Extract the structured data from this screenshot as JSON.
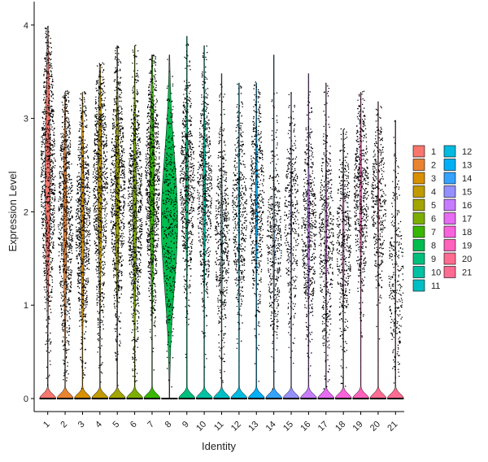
{
  "chart_data": {
    "type": "violin",
    "title": "",
    "xlabel": "Identity",
    "ylabel": "Expression Level",
    "ylim": [
      -0.1,
      4.1
    ],
    "yticks": [
      0,
      1,
      2,
      3,
      4
    ],
    "grid": false,
    "legend_position": "right",
    "categories": [
      "1",
      "2",
      "3",
      "4",
      "5",
      "6",
      "7",
      "8",
      "9",
      "10",
      "11",
      "12",
      "13",
      "14",
      "15",
      "16",
      "17",
      "18",
      "19",
      "20",
      "21"
    ],
    "colors": [
      "#F8766D",
      "#EA8331",
      "#D89000",
      "#C09B00",
      "#A3A500",
      "#7CAE00",
      "#39B600",
      "#00BB4E",
      "#00BF7D",
      "#00C1A3",
      "#00BFC4",
      "#00BAE0",
      "#00B0F6",
      "#35A2FF",
      "#9590FF",
      "#C77CFF",
      "#E76BF3",
      "#FA62DB",
      "#FF62BC",
      "#FF6C91",
      "#FF6C91"
    ],
    "series": [
      {
        "name": "1",
        "zero_peak": 0.35,
        "center": 2.4,
        "spread": 0.85,
        "max": 4.0,
        "nonzero_frac": 0.9
      },
      {
        "name": "2",
        "zero_peak": 0.5,
        "center": 1.9,
        "spread": 0.8,
        "max": 3.3,
        "nonzero_frac": 0.8
      },
      {
        "name": "3",
        "zero_peak": 0.45,
        "center": 1.9,
        "spread": 0.7,
        "max": 3.3,
        "nonzero_frac": 0.75
      },
      {
        "name": "4",
        "zero_peak": 0.45,
        "center": 2.3,
        "spread": 0.8,
        "max": 3.6,
        "nonzero_frac": 0.85
      },
      {
        "name": "5",
        "zero_peak": 0.45,
        "center": 2.2,
        "spread": 0.75,
        "max": 3.8,
        "nonzero_frac": 0.8
      },
      {
        "name": "6",
        "zero_peak": 0.45,
        "center": 2.0,
        "spread": 0.75,
        "max": 3.8,
        "nonzero_frac": 0.8
      },
      {
        "name": "7",
        "zero_peak": 0.35,
        "center": 2.3,
        "spread": 0.75,
        "max": 3.7,
        "nonzero_frac": 0.85
      },
      {
        "name": "8",
        "zero_peak": 0.0,
        "center": 1.9,
        "spread": 0.7,
        "max": 3.7,
        "nonzero_frac": 0.3
      },
      {
        "name": "9",
        "zero_peak": 0.45,
        "center": 2.3,
        "spread": 0.6,
        "max": 3.9,
        "nonzero_frac": 0.6
      },
      {
        "name": "10",
        "zero_peak": 0.45,
        "center": 2.2,
        "spread": 0.65,
        "max": 3.8,
        "nonzero_frac": 0.55
      },
      {
        "name": "11",
        "zero_peak": 0.6,
        "center": 1.7,
        "spread": 0.6,
        "max": 3.5,
        "nonzero_frac": 0.45
      },
      {
        "name": "12",
        "zero_peak": 0.6,
        "center": 2.0,
        "spread": 0.6,
        "max": 3.4,
        "nonzero_frac": 0.4
      },
      {
        "name": "13",
        "zero_peak": 0.55,
        "center": 2.1,
        "spread": 0.65,
        "max": 3.4,
        "nonzero_frac": 0.5
      },
      {
        "name": "14",
        "zero_peak": 0.55,
        "center": 1.7,
        "spread": 0.6,
        "max": 3.7,
        "nonzero_frac": 0.35
      },
      {
        "name": "15",
        "zero_peak": 0.55,
        "center": 1.9,
        "spread": 0.6,
        "max": 3.3,
        "nonzero_frac": 0.3
      },
      {
        "name": "16",
        "zero_peak": 0.6,
        "center": 1.8,
        "spread": 0.6,
        "max": 3.5,
        "nonzero_frac": 0.45
      },
      {
        "name": "17",
        "zero_peak": 0.6,
        "center": 1.7,
        "spread": 0.7,
        "max": 3.4,
        "nonzero_frac": 0.45
      },
      {
        "name": "18",
        "zero_peak": 0.55,
        "center": 1.7,
        "spread": 0.65,
        "max": 2.9,
        "nonzero_frac": 0.4
      },
      {
        "name": "19",
        "zero_peak": 0.65,
        "center": 2.2,
        "spread": 0.6,
        "max": 3.3,
        "nonzero_frac": 0.5
      },
      {
        "name": "20",
        "zero_peak": 0.6,
        "center": 2.1,
        "spread": 0.5,
        "max": 3.2,
        "nonzero_frac": 0.3
      },
      {
        "name": "21",
        "zero_peak": 0.85,
        "center": 1.3,
        "spread": 0.6,
        "max": 3.0,
        "nonzero_frac": 0.2
      }
    ]
  }
}
